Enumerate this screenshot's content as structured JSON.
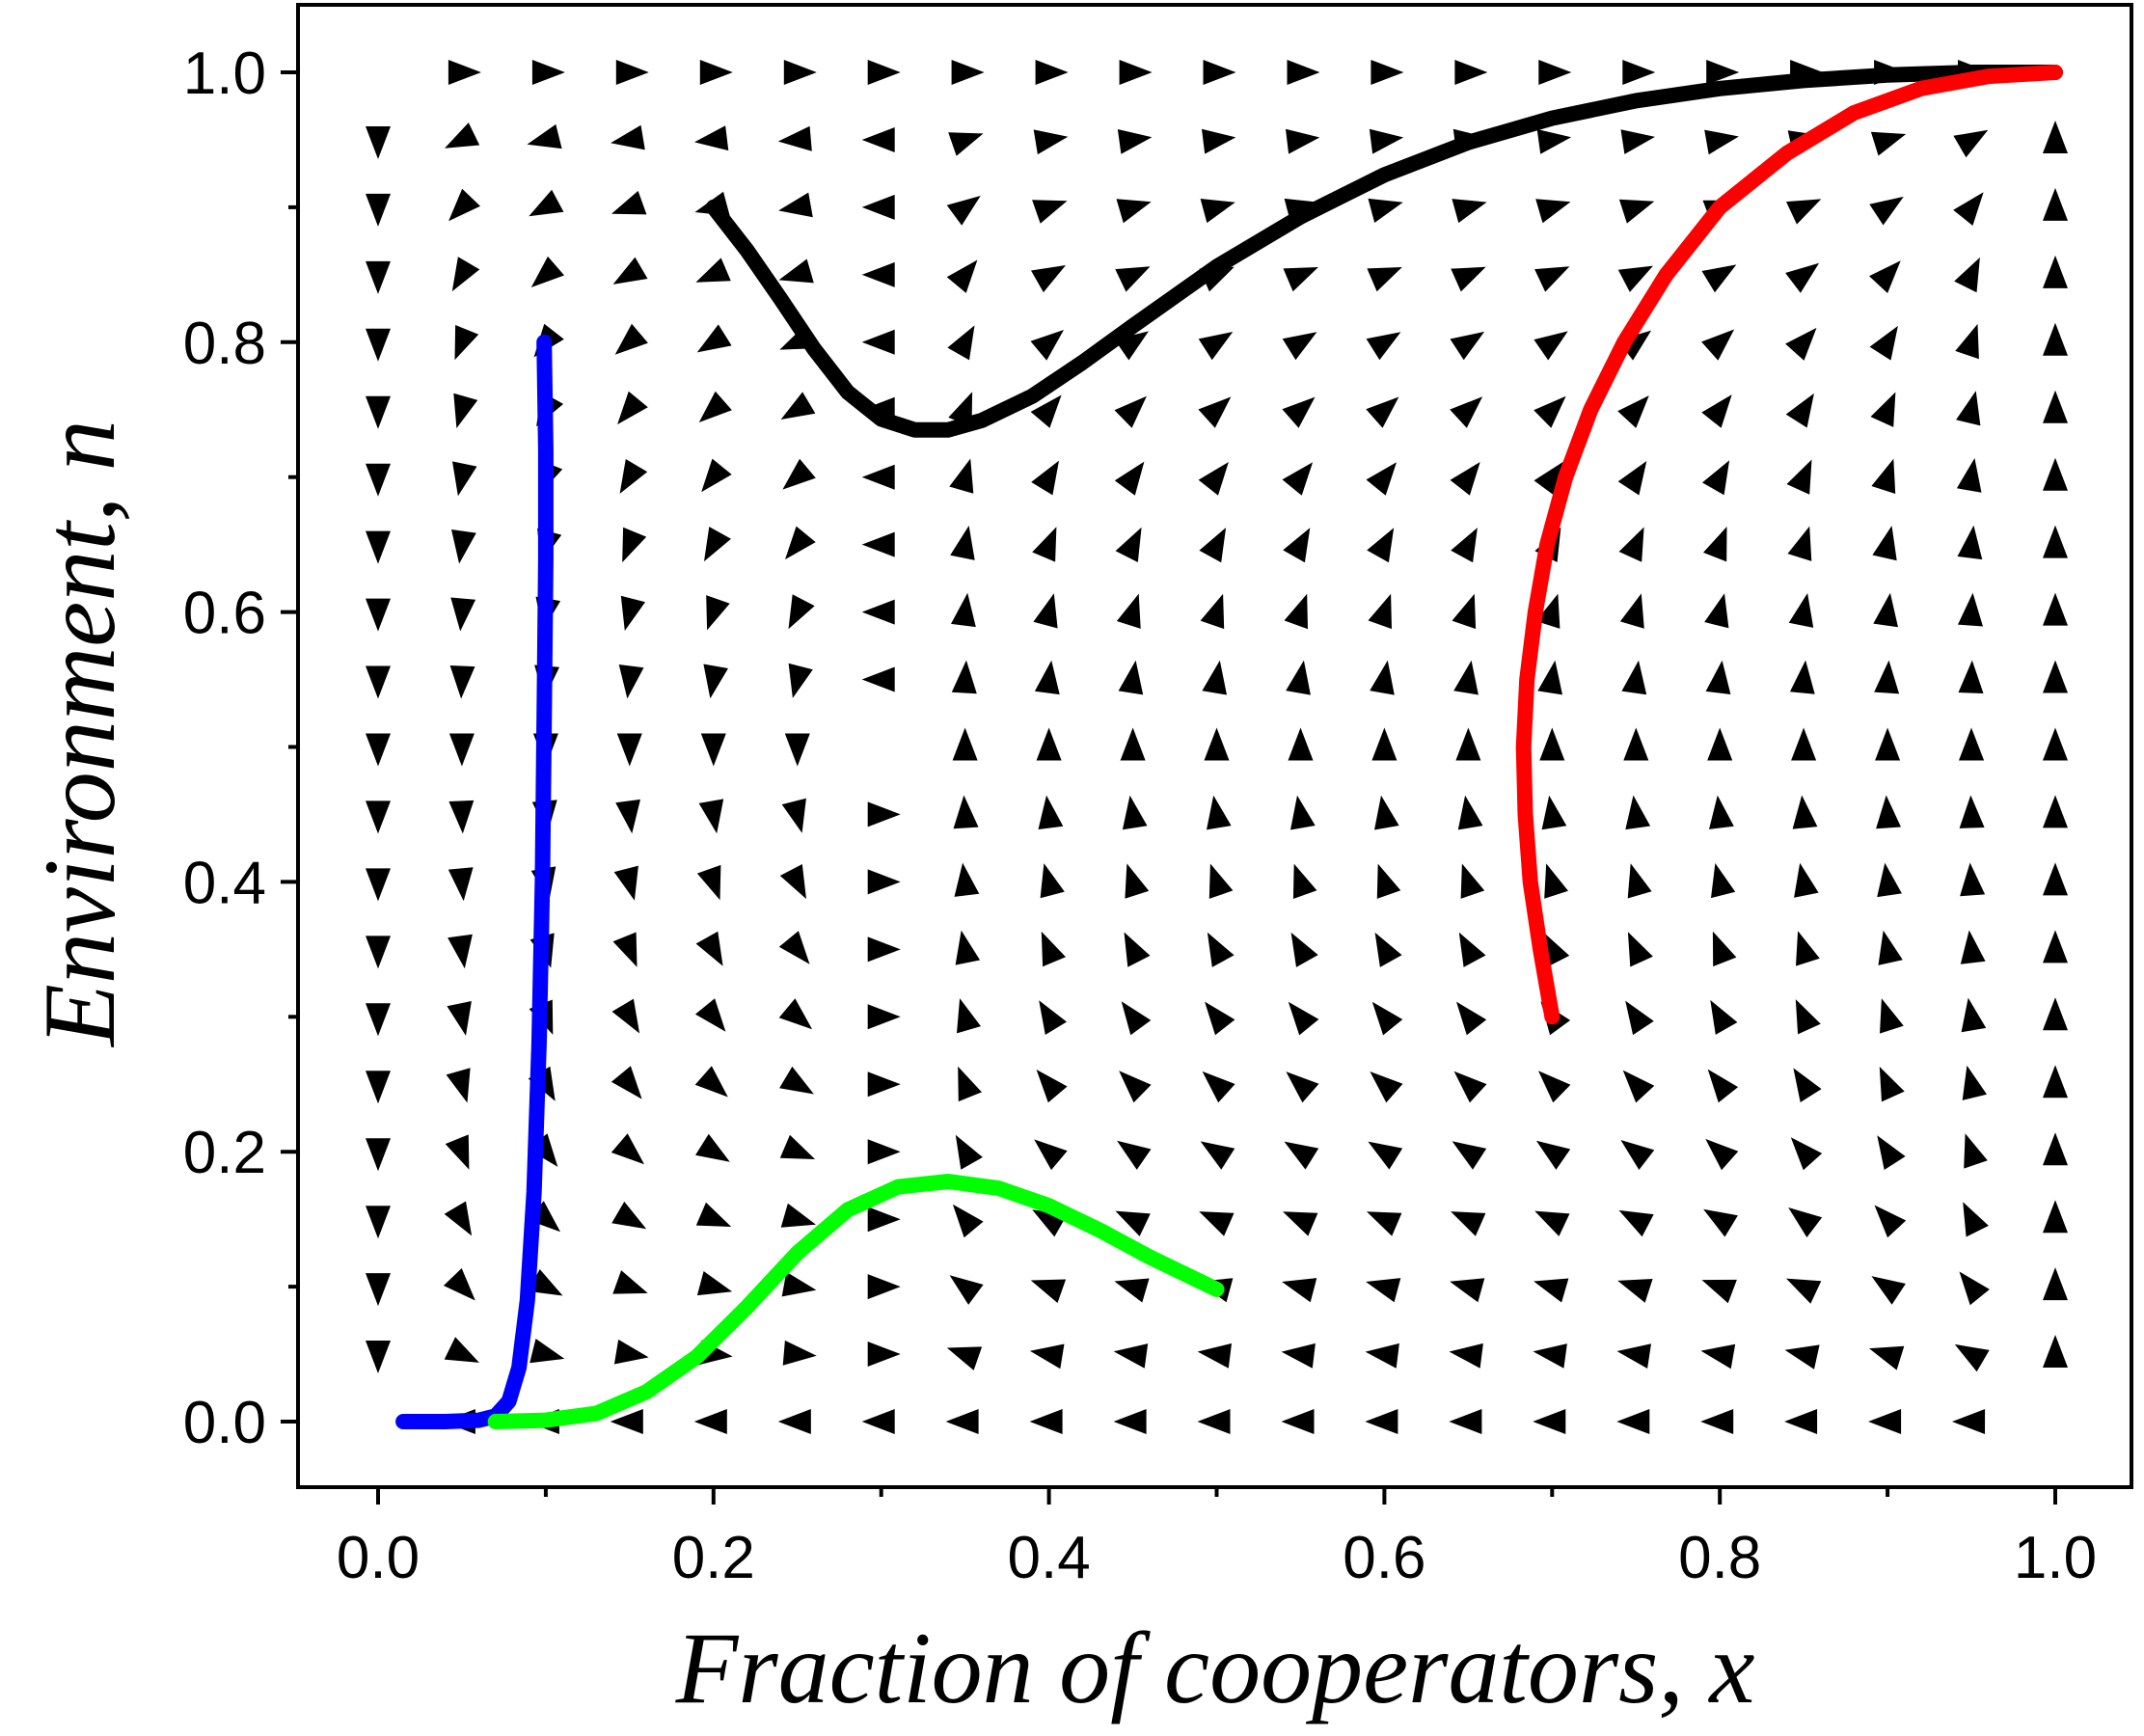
{
  "chart_data": {
    "type": "vector-field",
    "title": "",
    "xlabel": "Fraction of cooperators, x",
    "ylabel": "Environment, n",
    "xlim": [
      0.0,
      1.0
    ],
    "ylim": [
      0.0,
      1.0
    ],
    "x_ticks": [
      "0.0",
      "0.2",
      "0.4",
      "0.6",
      "0.8",
      "1.0"
    ],
    "y_ticks": [
      "0.0",
      "0.2",
      "0.4",
      "0.6",
      "0.8",
      "1.0"
    ],
    "grid": false,
    "legend": "none",
    "field": {
      "x_values": [
        0.0,
        0.05,
        0.1,
        0.15,
        0.2,
        0.25,
        0.3,
        0.35,
        0.4,
        0.45,
        0.5,
        0.55,
        0.6,
        0.65,
        0.7,
        0.75,
        0.8,
        0.85,
        0.9,
        0.95,
        1.0
      ],
      "y_values": [
        0.0,
        0.05,
        0.1,
        0.15,
        0.2,
        0.25,
        0.3,
        0.35,
        0.4,
        0.45,
        0.5,
        0.55,
        0.6,
        0.65,
        0.7,
        0.75,
        0.8,
        0.85,
        0.9,
        0.95,
        1.0
      ],
      "color": "#000000"
    },
    "series": [
      {
        "color": "#0000ff",
        "points": [
          [
            0.015,
            0.0
          ],
          [
            0.04,
            0.0
          ],
          [
            0.06,
            0.001
          ],
          [
            0.07,
            0.004
          ],
          [
            0.078,
            0.015
          ],
          [
            0.084,
            0.04
          ],
          [
            0.089,
            0.09
          ],
          [
            0.093,
            0.17
          ],
          [
            0.096,
            0.28
          ],
          [
            0.098,
            0.4
          ],
          [
            0.099,
            0.52
          ],
          [
            0.1,
            0.64
          ],
          [
            0.1,
            0.72
          ],
          [
            0.099,
            0.8
          ]
        ]
      },
      {
        "color": "#00ff00",
        "points": [
          [
            0.07,
            0.0
          ],
          [
            0.1,
            0.001
          ],
          [
            0.13,
            0.006
          ],
          [
            0.16,
            0.022
          ],
          [
            0.19,
            0.048
          ],
          [
            0.22,
            0.085
          ],
          [
            0.25,
            0.125
          ],
          [
            0.28,
            0.157
          ],
          [
            0.31,
            0.174
          ],
          [
            0.34,
            0.178
          ],
          [
            0.37,
            0.173
          ],
          [
            0.4,
            0.16
          ],
          [
            0.43,
            0.142
          ],
          [
            0.46,
            0.122
          ],
          [
            0.5,
            0.098
          ]
        ]
      },
      {
        "color": "#000000",
        "points": [
          [
            0.2,
            0.9
          ],
          [
            0.22,
            0.868
          ],
          [
            0.24,
            0.832
          ],
          [
            0.26,
            0.795
          ],
          [
            0.28,
            0.763
          ],
          [
            0.3,
            0.743
          ],
          [
            0.32,
            0.735
          ],
          [
            0.34,
            0.735
          ],
          [
            0.36,
            0.742
          ],
          [
            0.39,
            0.76
          ],
          [
            0.42,
            0.785
          ],
          [
            0.45,
            0.812
          ],
          [
            0.5,
            0.856
          ],
          [
            0.55,
            0.893
          ],
          [
            0.6,
            0.924
          ],
          [
            0.65,
            0.948
          ],
          [
            0.7,
            0.966
          ],
          [
            0.75,
            0.979
          ],
          [
            0.8,
            0.988
          ],
          [
            0.85,
            0.994
          ],
          [
            0.9,
            0.998
          ],
          [
            0.95,
            1.0
          ],
          [
            1.0,
            1.0
          ]
        ]
      },
      {
        "color": "#ff0000",
        "points": [
          [
            0.7,
            0.3
          ],
          [
            0.693,
            0.35
          ],
          [
            0.687,
            0.4
          ],
          [
            0.684,
            0.45
          ],
          [
            0.683,
            0.5
          ],
          [
            0.685,
            0.55
          ],
          [
            0.69,
            0.6
          ],
          [
            0.697,
            0.65
          ],
          [
            0.708,
            0.7
          ],
          [
            0.723,
            0.75
          ],
          [
            0.743,
            0.8
          ],
          [
            0.768,
            0.85
          ],
          [
            0.8,
            0.9
          ],
          [
            0.84,
            0.94
          ],
          [
            0.88,
            0.97
          ],
          [
            0.92,
            0.988
          ],
          [
            0.96,
            0.997
          ],
          [
            1.0,
            1.0
          ]
        ]
      }
    ]
  }
}
